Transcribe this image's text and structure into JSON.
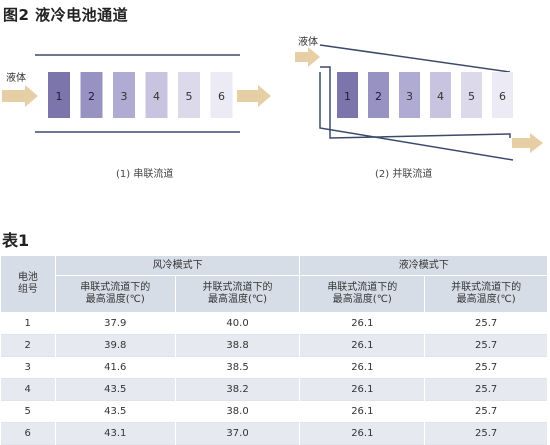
{
  "figure": {
    "title": "图2 液冷电池通道",
    "left": {
      "fluid_label": "液体",
      "cells": [
        "1",
        "2",
        "3",
        "4",
        "5",
        "6"
      ],
      "caption": "(1) 串联流道"
    },
    "right": {
      "fluid_label": "液体",
      "cells": [
        "1",
        "2",
        "3",
        "4",
        "5",
        "6"
      ],
      "caption": "(2) 并联流道"
    },
    "cell_colors": [
      "#7b75ab",
      "#9892c2",
      "#b0abd2",
      "#c8c4df",
      "#dcd9eb",
      "#eceaf4"
    ]
  },
  "table": {
    "title": "表1",
    "header": {
      "col0": "电池组号",
      "group_air": "风冷模式下",
      "group_liquid": "液冷模式下",
      "sub": [
        "串联式流道下的最高温度(℃)",
        "并联式流道下的最高温度(℃)",
        "串联式流道下的最高温度(℃)",
        "并联式流道下的最高温度(℃)"
      ]
    },
    "rows": [
      [
        "1",
        "37.9",
        "40.0",
        "26.1",
        "25.7"
      ],
      [
        "2",
        "39.8",
        "38.8",
        "26.1",
        "25.7"
      ],
      [
        "3",
        "41.6",
        "38.5",
        "26.1",
        "25.7"
      ],
      [
        "4",
        "43.5",
        "38.2",
        "26.1",
        "25.7"
      ],
      [
        "5",
        "43.5",
        "38.0",
        "26.1",
        "25.7"
      ],
      [
        "6",
        "43.1",
        "37.0",
        "26.1",
        "25.7"
      ]
    ]
  }
}
